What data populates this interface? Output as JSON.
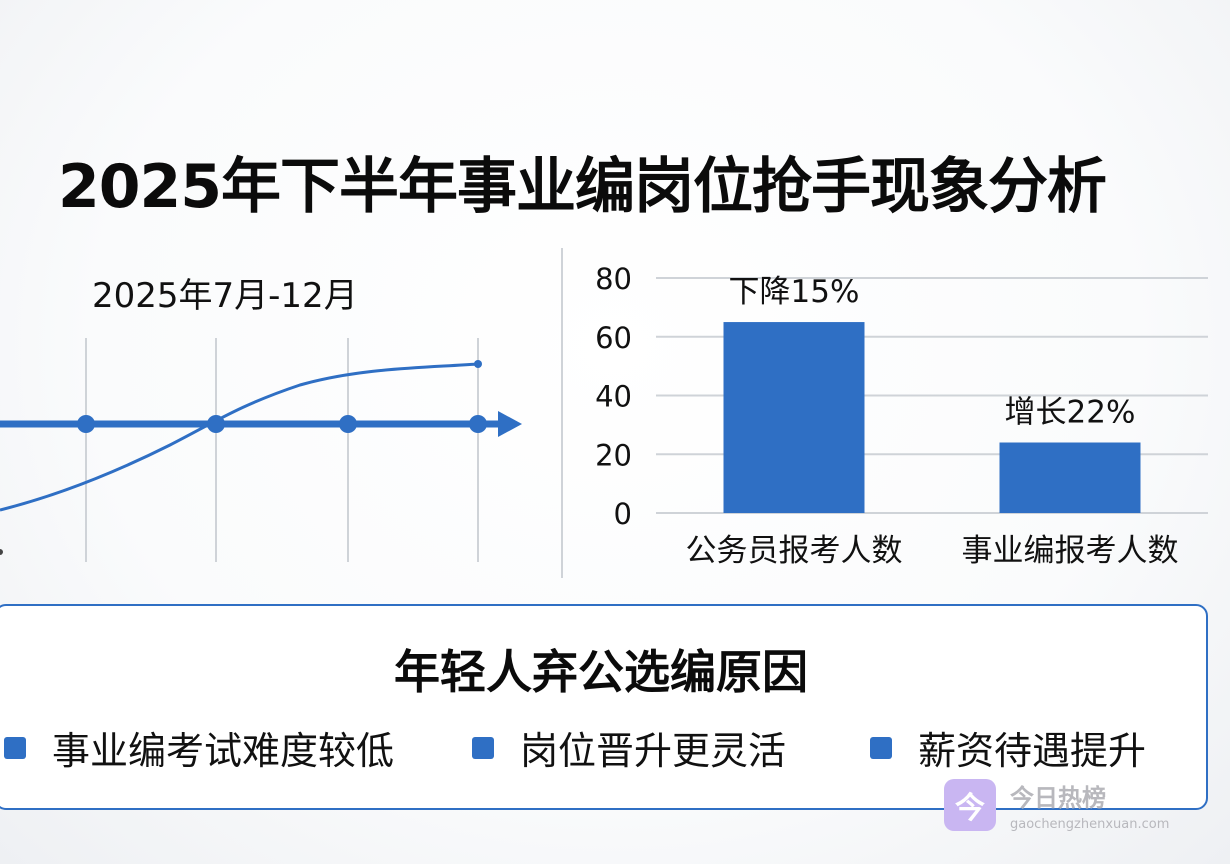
{
  "title": "2025年下半年事业编岗位抢手现象分析",
  "timeline": {
    "label": "2025年7月-12月",
    "accent": "#2f6fc4"
  },
  "chart_data": {
    "type": "bar",
    "categories": [
      "公务员报考人数",
      "事业编报考人数"
    ],
    "values": [
      65,
      24
    ],
    "annotations": [
      "下降15%",
      "增长22%"
    ],
    "yticks": [
      "0",
      "20",
      "40",
      "60",
      "80"
    ],
    "ylim": [
      0,
      80
    ],
    "grid": true,
    "bar_color": "#2f6fc4"
  },
  "reasons": {
    "title": "年轻人弃公选编原因",
    "items": [
      "事业编考试难度较低",
      "岗位晋升更灵活",
      "薪资待遇提升"
    ]
  },
  "watermark": {
    "logo_glyph": "今",
    "name": "今日热榜",
    "url": "gaochengzhenxuan.com"
  }
}
